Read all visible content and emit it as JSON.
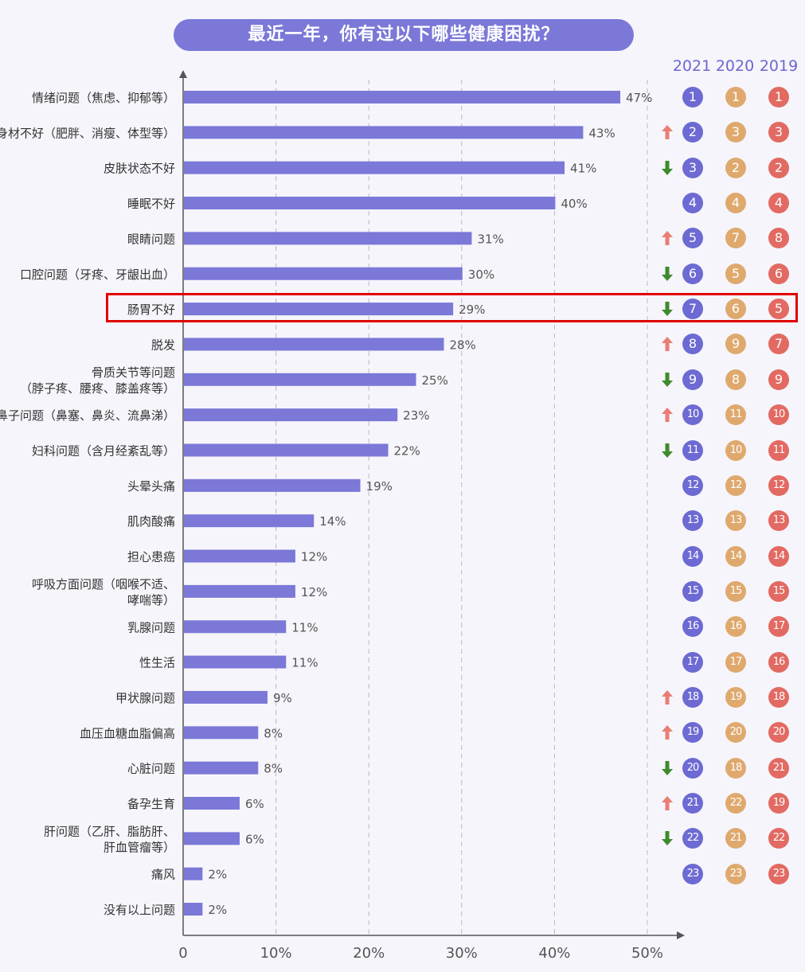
{
  "title": "最近一年，你有过以下哪些健康困扰？",
  "year_headers": [
    "2021",
    "2020",
    "2019"
  ],
  "colors": {
    "bar": "#7b78d8",
    "rank_2021": "#6d6ad3",
    "rank_2020": "#dfa96e",
    "rank_2019": "#e26a62",
    "arrow_up": "#ea7d74",
    "arrow_down": "#3f8a2e",
    "highlight": "#e00000"
  },
  "chart_data": {
    "type": "bar",
    "orientation": "horizontal",
    "title": "最近一年，你有过以下哪些健康困扰？",
    "xlim": [
      0,
      50
    ],
    "x_ticks": [
      "0",
      "10%",
      "20%",
      "30%",
      "40%",
      "50%"
    ],
    "grid": "vertical dashed",
    "categories": [
      [
        "情绪问题（焦虑、抑郁等）"
      ],
      [
        "身材不好（肥胖、消瘦、体型等）"
      ],
      [
        "皮肤状态不好"
      ],
      [
        "睡眠不好"
      ],
      [
        "眼睛问题"
      ],
      [
        "口腔问题（牙疼、牙龈出血）"
      ],
      [
        "肠胃不好"
      ],
      [
        "脱发"
      ],
      [
        "骨质关节等问题",
        "（脖子疼、腰疼、膝盖疼等）"
      ],
      [
        "鼻子问题（鼻塞、鼻炎、流鼻涕）"
      ],
      [
        "妇科问题（含月经紊乱等）"
      ],
      [
        "头晕头痛"
      ],
      [
        "肌肉酸痛"
      ],
      [
        "担心患癌"
      ],
      [
        "呼吸方面问题（咽喉不适、",
        "哮喘等）"
      ],
      [
        "乳腺问题"
      ],
      [
        "性生活"
      ],
      [
        "甲状腺问题"
      ],
      [
        "血压血糖血脂偏高"
      ],
      [
        "心脏问题"
      ],
      [
        "备孕生育"
      ],
      [
        "肝问题（乙肝、脂肪肝、",
        "肝血管瘤等）"
      ],
      [
        "痛风"
      ],
      [
        "没有以上问题"
      ]
    ],
    "values": [
      47,
      43,
      41,
      40,
      31,
      30,
      29,
      28,
      25,
      23,
      22,
      19,
      14,
      12,
      12,
      11,
      11,
      9,
      8,
      8,
      6,
      6,
      2,
      2
    ],
    "value_labels": [
      "47%",
      "43%",
      "41%",
      "40%",
      "31%",
      "30%",
      "29%",
      "28%",
      "25%",
      "23%",
      "22%",
      "19%",
      "14%",
      "12%",
      "12%",
      "11%",
      "11%",
      "9%",
      "8%",
      "8%",
      "6%",
      "6%",
      "2%",
      "2%"
    ],
    "rank_2021": [
      1,
      2,
      3,
      4,
      5,
      6,
      7,
      8,
      9,
      10,
      11,
      12,
      13,
      14,
      15,
      16,
      17,
      18,
      19,
      20,
      21,
      22,
      23,
      null
    ],
    "rank_2020": [
      1,
      3,
      2,
      4,
      7,
      5,
      6,
      9,
      8,
      11,
      10,
      12,
      13,
      14,
      15,
      16,
      17,
      19,
      20,
      18,
      22,
      21,
      23,
      null
    ],
    "rank_2019": [
      1,
      3,
      2,
      4,
      8,
      6,
      5,
      7,
      9,
      10,
      11,
      12,
      13,
      14,
      15,
      17,
      16,
      18,
      20,
      21,
      19,
      22,
      23,
      null
    ],
    "trend": [
      "",
      "up",
      "down",
      "",
      "up",
      "down",
      "down",
      "up",
      "down",
      "up",
      "down",
      "",
      "",
      "",
      "",
      "",
      "",
      "up",
      "up",
      "down",
      "up",
      "down",
      "",
      ""
    ],
    "highlighted_category": "肠胃不好"
  }
}
